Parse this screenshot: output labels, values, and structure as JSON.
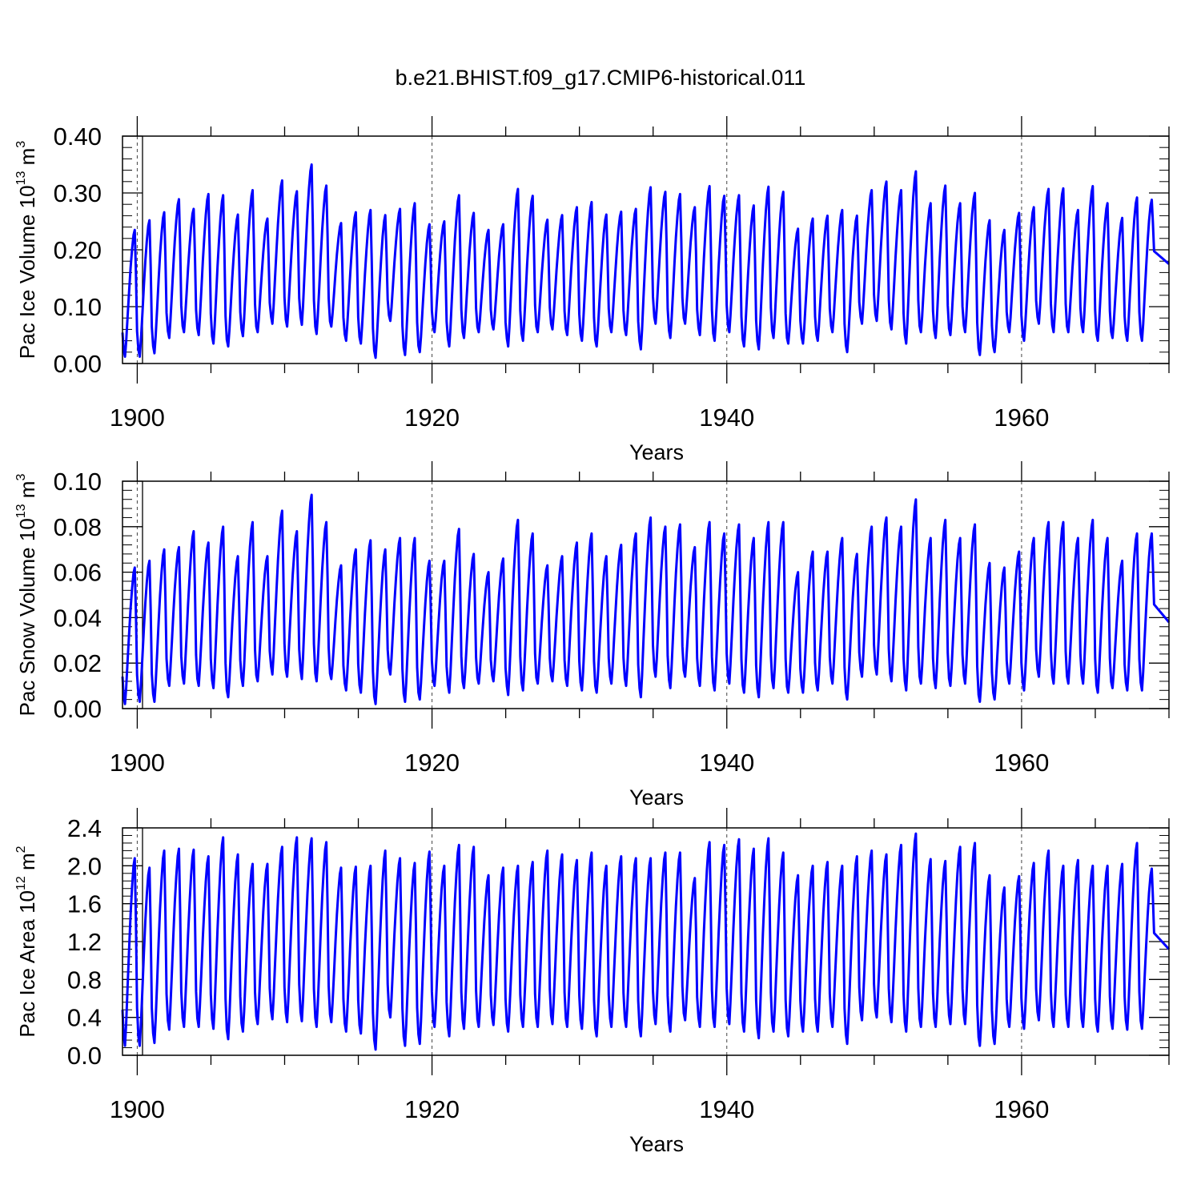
{
  "figure": {
    "title": "b.e21.BHIST.f09_g17.CMIP6-historical.011",
    "line_color": "#0000ff"
  },
  "chart_data": [
    {
      "type": "line",
      "title": "b.e21.BHIST.f09_g17.CMIP6-historical.011",
      "xlabel": "Years",
      "ylabel_main": "Pac Ice Volume 10",
      "ylabel_exp": "13",
      "ylabel_unit": " m",
      "ylabel_unit_exp": "3",
      "xlim": [
        1899.0,
        1970.0
      ],
      "ylim": [
        0.0,
        0.4
      ],
      "xticks": [
        1900,
        1920,
        1940,
        1960
      ],
      "xtick_labels": [
        "1900",
        "1920",
        "1940",
        "1960"
      ],
      "yticks": [
        0.0,
        0.1,
        0.2,
        0.3,
        0.4
      ],
      "ytick_labels": [
        "0.00",
        "0.10",
        "0.20",
        "0.30",
        "0.40"
      ],
      "grid": "dashed vertical at major x ticks",
      "series": [
        {
          "name": "Pac Ice Volume",
          "x_start": 1899.0,
          "annual_max": [
            0.235,
            0.252,
            0.266,
            0.289,
            0.272,
            0.298,
            0.296,
            0.262,
            0.305,
            0.255,
            0.322,
            0.303,
            0.35,
            0.313,
            0.247,
            0.266,
            0.27,
            0.261,
            0.272,
            0.282,
            0.245,
            0.25,
            0.296,
            0.265,
            0.235,
            0.245,
            0.307,
            0.295,
            0.253,
            0.261,
            0.275,
            0.284,
            0.262,
            0.267,
            0.272,
            0.31,
            0.302,
            0.298,
            0.275,
            0.312,
            0.295,
            0.296,
            0.278,
            0.311,
            0.302,
            0.237,
            0.255,
            0.26,
            0.27,
            0.26,
            0.305,
            0.32,
            0.305,
            0.338,
            0.282,
            0.313,
            0.282,
            0.3,
            0.252,
            0.235,
            0.265,
            0.275,
            0.307,
            0.308,
            0.27,
            0.312,
            0.282,
            0.256,
            0.292,
            0.288
          ],
          "annual_min": [
            0.012,
            0.012,
            0.018,
            0.045,
            0.055,
            0.05,
            0.035,
            0.03,
            0.048,
            0.055,
            0.07,
            0.065,
            0.068,
            0.052,
            0.065,
            0.04,
            0.035,
            0.01,
            0.075,
            0.015,
            0.02,
            0.055,
            0.03,
            0.045,
            0.055,
            0.06,
            0.03,
            0.04,
            0.055,
            0.06,
            0.05,
            0.04,
            0.03,
            0.055,
            0.05,
            0.025,
            0.07,
            0.045,
            0.07,
            0.05,
            0.04,
            0.055,
            0.03,
            0.025,
            0.045,
            0.035,
            0.035,
            0.04,
            0.055,
            0.02,
            0.07,
            0.075,
            0.06,
            0.035,
            0.055,
            0.045,
            0.05,
            0.055,
            0.015,
            0.02,
            0.055,
            0.04,
            0.07,
            0.055,
            0.055,
            0.055,
            0.04,
            0.045,
            0.04,
            0.04
          ],
          "end_value": 0.175
        }
      ]
    },
    {
      "type": "line",
      "xlabel": "Years",
      "ylabel_main": "Pac Snow Volume 10",
      "ylabel_exp": "13",
      "ylabel_unit": " m",
      "ylabel_unit_exp": "3",
      "xlim": [
        1899.0,
        1970.0
      ],
      "ylim": [
        0.0,
        0.1
      ],
      "xticks": [
        1900,
        1920,
        1940,
        1960
      ],
      "xtick_labels": [
        "1900",
        "1920",
        "1940",
        "1960"
      ],
      "yticks": [
        0.0,
        0.02,
        0.04,
        0.06,
        0.08,
        0.1
      ],
      "ytick_labels": [
        "0.00",
        "0.02",
        "0.04",
        "0.06",
        "0.08",
        "0.10"
      ],
      "grid": "dashed vertical at major x ticks",
      "series": [
        {
          "name": "Pac Snow Volume",
          "x_start": 1899.0,
          "annual_max": [
            0.062,
            0.065,
            0.07,
            0.071,
            0.078,
            0.073,
            0.08,
            0.067,
            0.082,
            0.067,
            0.087,
            0.078,
            0.094,
            0.082,
            0.063,
            0.07,
            0.074,
            0.07,
            0.075,
            0.075,
            0.065,
            0.065,
            0.079,
            0.068,
            0.06,
            0.066,
            0.083,
            0.077,
            0.063,
            0.067,
            0.073,
            0.077,
            0.067,
            0.072,
            0.077,
            0.084,
            0.08,
            0.081,
            0.071,
            0.082,
            0.077,
            0.081,
            0.075,
            0.082,
            0.082,
            0.06,
            0.069,
            0.069,
            0.075,
            0.068,
            0.08,
            0.084,
            0.08,
            0.092,
            0.075,
            0.083,
            0.075,
            0.081,
            0.064,
            0.062,
            0.069,
            0.075,
            0.082,
            0.082,
            0.075,
            0.083,
            0.075,
            0.065,
            0.077,
            0.077
          ],
          "annual_min": [
            0.002,
            0.003,
            0.003,
            0.01,
            0.011,
            0.01,
            0.009,
            0.005,
            0.01,
            0.012,
            0.015,
            0.014,
            0.013,
            0.012,
            0.013,
            0.008,
            0.007,
            0.002,
            0.015,
            0.003,
            0.004,
            0.01,
            0.007,
            0.009,
            0.011,
            0.012,
            0.006,
            0.008,
            0.011,
            0.012,
            0.01,
            0.008,
            0.007,
            0.011,
            0.01,
            0.005,
            0.014,
            0.009,
            0.014,
            0.01,
            0.008,
            0.011,
            0.007,
            0.005,
            0.009,
            0.007,
            0.007,
            0.008,
            0.011,
            0.004,
            0.014,
            0.015,
            0.012,
            0.008,
            0.011,
            0.009,
            0.01,
            0.011,
            0.003,
            0.004,
            0.011,
            0.008,
            0.014,
            0.011,
            0.011,
            0.011,
            0.007,
            0.009,
            0.008,
            0.008
          ],
          "end_value": 0.038
        }
      ]
    },
    {
      "type": "line",
      "xlabel": "Years",
      "ylabel_main": "Pac Ice Area 10",
      "ylabel_exp": "12",
      "ylabel_unit": " m",
      "ylabel_unit_exp": "2",
      "xlim": [
        1899.0,
        1970.0
      ],
      "ylim": [
        0.0,
        2.4
      ],
      "xticks": [
        1900,
        1920,
        1940,
        1960
      ],
      "xtick_labels": [
        "1900",
        "1920",
        "1940",
        "1960"
      ],
      "yticks": [
        0.0,
        0.4,
        0.8,
        1.2,
        1.6,
        2.0,
        2.4
      ],
      "ytick_labels": [
        "0.0",
        "0.4",
        "0.8",
        "1.2",
        "1.6",
        "2.0",
        "2.4"
      ],
      "grid": "dashed vertical at major x ticks",
      "series": [
        {
          "name": "Pac Ice Area",
          "x_start": 1899.0,
          "annual_max": [
            2.08,
            1.98,
            2.16,
            2.18,
            2.17,
            2.1,
            2.3,
            2.12,
            2.02,
            2.02,
            2.2,
            2.3,
            2.29,
            2.25,
            1.98,
            1.99,
            2.0,
            2.16,
            2.08,
            2.03,
            2.15,
            2.0,
            2.22,
            2.2,
            1.9,
            1.98,
            2.0,
            2.04,
            2.16,
            2.12,
            2.06,
            2.14,
            2.0,
            2.1,
            2.08,
            2.08,
            2.14,
            2.14,
            1.87,
            2.25,
            2.22,
            2.28,
            2.18,
            2.29,
            2.14,
            1.9,
            2.0,
            2.04,
            2.0,
            2.1,
            2.16,
            2.12,
            2.22,
            2.34,
            2.07,
            2.05,
            2.2,
            2.24,
            1.9,
            1.77,
            1.89,
            2.03,
            2.16,
            2.0,
            2.06,
            2.0,
            2.0,
            2.02,
            2.24,
            1.97
          ],
          "annual_min": [
            0.1,
            0.1,
            0.13,
            0.27,
            0.3,
            0.3,
            0.28,
            0.17,
            0.25,
            0.33,
            0.38,
            0.35,
            0.36,
            0.3,
            0.35,
            0.25,
            0.23,
            0.06,
            0.4,
            0.1,
            0.12,
            0.3,
            0.2,
            0.28,
            0.3,
            0.32,
            0.25,
            0.3,
            0.3,
            0.33,
            0.3,
            0.28,
            0.2,
            0.3,
            0.3,
            0.2,
            0.33,
            0.25,
            0.37,
            0.3,
            0.3,
            0.33,
            0.25,
            0.18,
            0.25,
            0.2,
            0.25,
            0.25,
            0.3,
            0.12,
            0.37,
            0.4,
            0.35,
            0.25,
            0.3,
            0.3,
            0.33,
            0.33,
            0.1,
            0.12,
            0.3,
            0.28,
            0.37,
            0.3,
            0.3,
            0.3,
            0.25,
            0.28,
            0.27,
            0.28
          ],
          "end_value": 1.12
        }
      ]
    }
  ]
}
